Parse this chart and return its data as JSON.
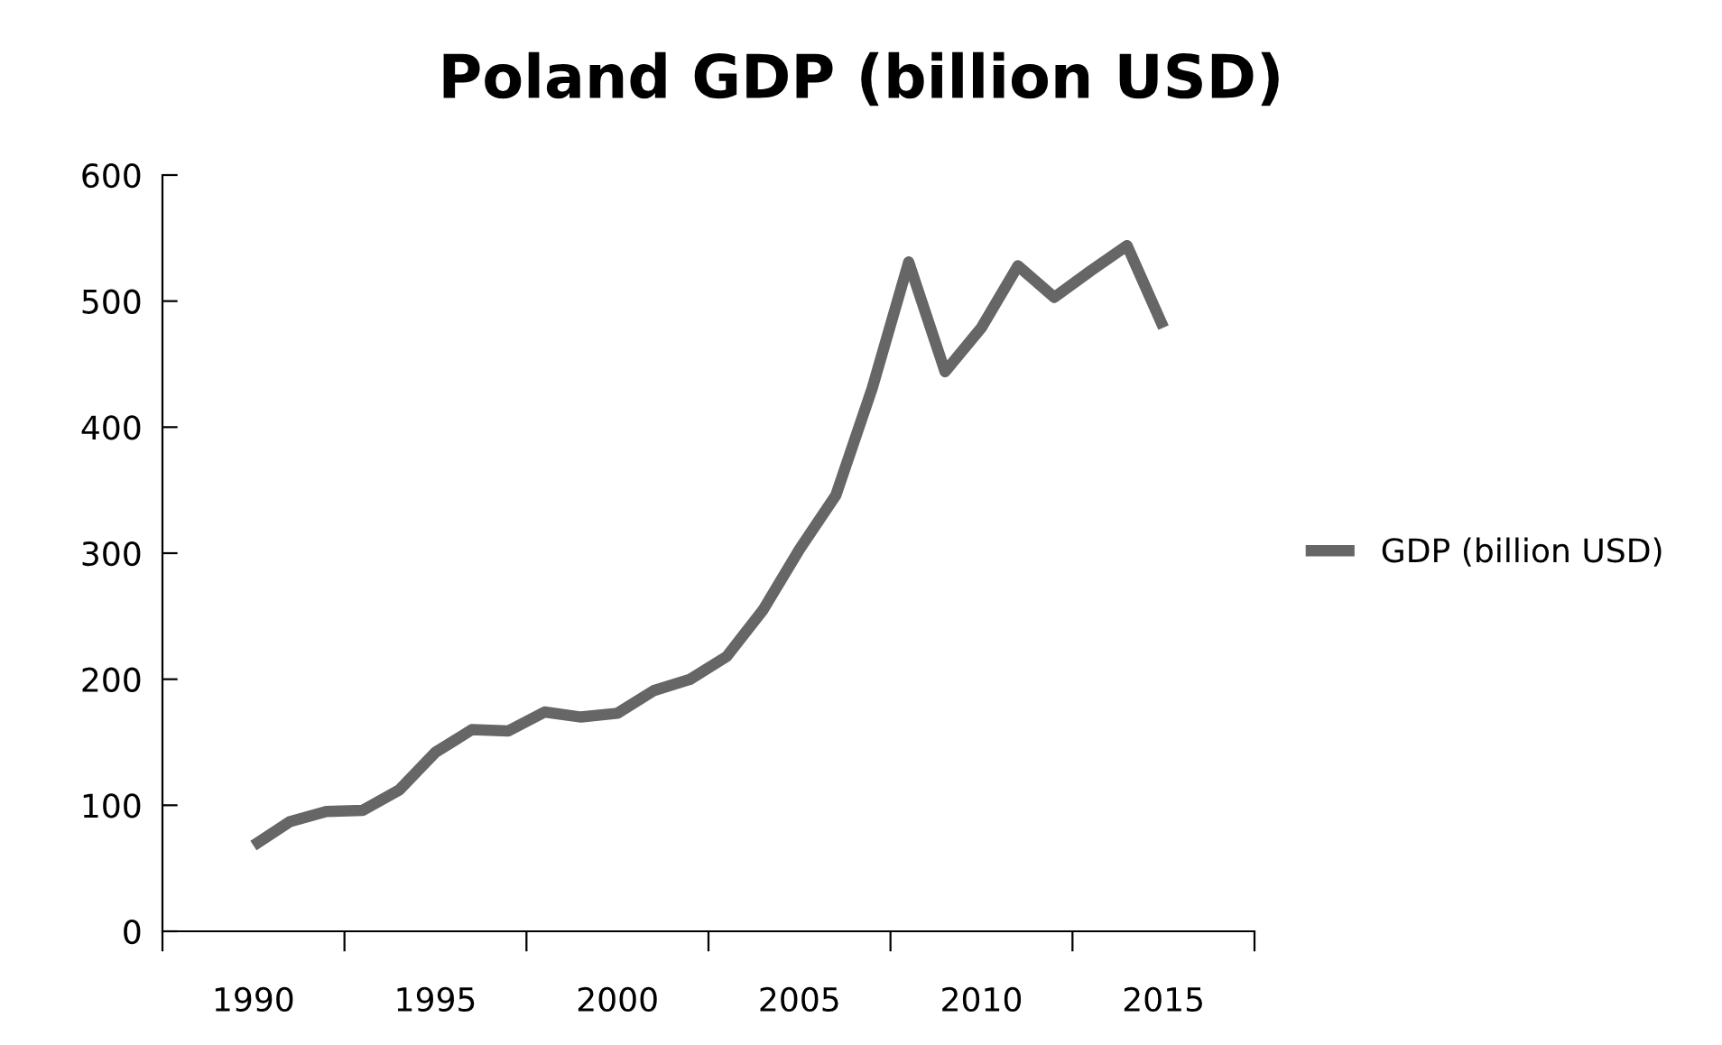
{
  "chart_data": {
    "type": "line",
    "title": "Poland GDP (billion USD)",
    "x": [
      1990,
      1991,
      1992,
      1993,
      1994,
      1995,
      1996,
      1997,
      1998,
      1999,
      2000,
      2001,
      2002,
      2003,
      2004,
      2005,
      2006,
      2007,
      2008,
      2009,
      2010,
      2011,
      2012,
      2013,
      2014,
      2015
    ],
    "series": [
      {
        "name": "GDP (billion USD)",
        "color": "#666666",
        "values": [
          68,
          87,
          95,
          96,
          112,
          142,
          160,
          159,
          174,
          170,
          173,
          191,
          200,
          218,
          255,
          303,
          346,
          431,
          531,
          444,
          479,
          528,
          503,
          524,
          544,
          479
        ]
      }
    ],
    "xlim": [
      1987.5,
      2017.5
    ],
    "xticks": [
      {
        "value": 1987.5,
        "label": null
      },
      {
        "value": 1990,
        "label": "1990"
      },
      {
        "value": 1992.5,
        "label": null
      },
      {
        "value": 1995,
        "label": "1995"
      },
      {
        "value": 1997.5,
        "label": null
      },
      {
        "value": 2000,
        "label": "2000"
      },
      {
        "value": 2002.5,
        "label": null
      },
      {
        "value": 2005,
        "label": "2005"
      },
      {
        "value": 2007.5,
        "label": null
      },
      {
        "value": 2010,
        "label": "2010"
      },
      {
        "value": 2012.5,
        "label": null
      },
      {
        "value": 2015,
        "label": "2015"
      },
      {
        "value": 2017.5,
        "label": null
      }
    ],
    "ylim": [
      0,
      600
    ],
    "yticks": [
      0,
      100,
      200,
      300,
      400,
      500,
      600
    ],
    "grid": false,
    "legend": "right",
    "marker": "none",
    "line_style": "solid"
  }
}
